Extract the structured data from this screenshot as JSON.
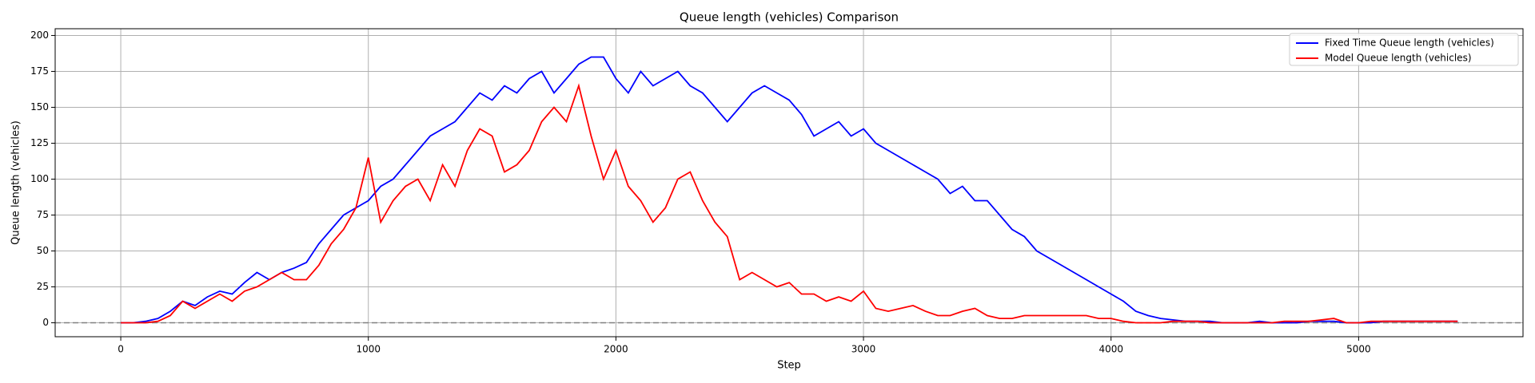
{
  "chart_data": {
    "type": "line",
    "title": "Queue length (vehicles) Comparison",
    "xlabel": "Step",
    "ylabel": "Queue length (vehicles)",
    "x": [
      0,
      50,
      100,
      150,
      200,
      250,
      300,
      350,
      400,
      450,
      500,
      550,
      600,
      650,
      700,
      750,
      800,
      850,
      900,
      950,
      1000,
      1050,
      1100,
      1150,
      1200,
      1250,
      1300,
      1350,
      1400,
      1450,
      1500,
      1550,
      1600,
      1650,
      1700,
      1750,
      1800,
      1850,
      1900,
      1950,
      2000,
      2050,
      2100,
      2150,
      2200,
      2250,
      2300,
      2350,
      2400,
      2450,
      2500,
      2550,
      2600,
      2650,
      2700,
      2750,
      2800,
      2850,
      2900,
      2950,
      3000,
      3050,
      3100,
      3150,
      3200,
      3250,
      3300,
      3350,
      3400,
      3450,
      3500,
      3550,
      3600,
      3650,
      3700,
      3750,
      3800,
      3850,
      3900,
      3950,
      4000,
      4050,
      4100,
      4150,
      4200,
      4250,
      4300,
      4350,
      4400,
      4450,
      4500,
      4550,
      4600,
      4650,
      4700,
      4750,
      4800,
      4850,
      4900,
      4950,
      5000,
      5050,
      5100,
      5150,
      5200,
      5250,
      5300,
      5350,
      5400
    ],
    "series": [
      {
        "name": "Fixed Time Queue length (vehicles)",
        "color": "#0000ff",
        "values": [
          0,
          0,
          1,
          3,
          8,
          15,
          12,
          18,
          22,
          20,
          28,
          35,
          30,
          35,
          38,
          42,
          55,
          65,
          75,
          80,
          85,
          95,
          100,
          110,
          120,
          130,
          135,
          140,
          150,
          160,
          155,
          165,
          160,
          170,
          175,
          160,
          170,
          180,
          185,
          185,
          170,
          160,
          175,
          165,
          170,
          175,
          165,
          160,
          150,
          140,
          150,
          160,
          165,
          160,
          155,
          145,
          130,
          135,
          140,
          130,
          135,
          125,
          120,
          115,
          110,
          105,
          100,
          90,
          95,
          85,
          85,
          75,
          65,
          60,
          50,
          45,
          40,
          35,
          30,
          25,
          20,
          15,
          8,
          5,
          3,
          2,
          1,
          1,
          1,
          0,
          0,
          0,
          1,
          0,
          0,
          0,
          1,
          1,
          1,
          0,
          0,
          0,
          1,
          1,
          1,
          1,
          1,
          1,
          1
        ]
      },
      {
        "name": "Model Queue length (vehicles)",
        "color": "#ff0000",
        "values": [
          0,
          0,
          0,
          1,
          5,
          15,
          10,
          15,
          20,
          15,
          22,
          25,
          30,
          35,
          30,
          30,
          40,
          55,
          65,
          80,
          115,
          70,
          85,
          95,
          100,
          85,
          110,
          95,
          120,
          135,
          130,
          105,
          110,
          120,
          140,
          150,
          140,
          165,
          130,
          100,
          120,
          95,
          85,
          70,
          80,
          100,
          105,
          85,
          70,
          60,
          30,
          35,
          30,
          25,
          28,
          20,
          20,
          15,
          18,
          15,
          22,
          10,
          8,
          10,
          12,
          8,
          5,
          5,
          8,
          10,
          5,
          3,
          3,
          5,
          5,
          5,
          5,
          5,
          5,
          3,
          3,
          1,
          0,
          0,
          0,
          1,
          1,
          1,
          0,
          0,
          0,
          0,
          0,
          0,
          1,
          1,
          1,
          2,
          3,
          0,
          0,
          1,
          1,
          1,
          1,
          1,
          1,
          1,
          1
        ]
      }
    ],
    "xlim": [
      -265,
      5664
    ],
    "ylim": [
      -9.7,
      204.7
    ],
    "xticks": [
      0,
      1000,
      2000,
      3000,
      4000,
      5000
    ],
    "yticks": [
      0,
      25,
      50,
      75,
      100,
      125,
      150,
      175,
      200
    ],
    "grid": true,
    "legend": "upper right",
    "hline": 0
  }
}
